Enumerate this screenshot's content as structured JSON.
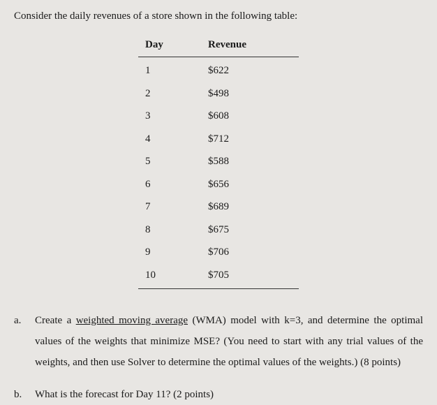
{
  "intro_text": "Consider the daily revenues of a store shown in the following table:",
  "table": {
    "headers": {
      "col1": "Day",
      "col2": "Revenue"
    },
    "rows": [
      {
        "day": "1",
        "revenue": "$622"
      },
      {
        "day": "2",
        "revenue": "$498"
      },
      {
        "day": "3",
        "revenue": "$608"
      },
      {
        "day": "4",
        "revenue": "$712"
      },
      {
        "day": "5",
        "revenue": "$588"
      },
      {
        "day": "6",
        "revenue": "$656"
      },
      {
        "day": "7",
        "revenue": "$689"
      },
      {
        "day": "8",
        "revenue": "$675"
      },
      {
        "day": "9",
        "revenue": "$706"
      },
      {
        "day": "10",
        "revenue": "$705"
      }
    ]
  },
  "questions": {
    "a": {
      "marker": "a.",
      "text_before": "Create a ",
      "underlined": "weighted moving average",
      "text_after": " (WMA) model with k=3, and determine the optimal values of the weights that minimize MSE? (You need to start with any trial values of the weights, and then use Solver to determine the optimal values of the weights.) (8 points)"
    },
    "b": {
      "marker": "b.",
      "text": "What is the forecast for Day 11? (2 points)"
    }
  },
  "styling": {
    "background_color": "#e8e6e3",
    "text_color": "#1a1a1a",
    "font_family": "Times New Roman",
    "body_fontsize": 15,
    "border_color": "#333333",
    "line_height_questions": 2.0
  }
}
